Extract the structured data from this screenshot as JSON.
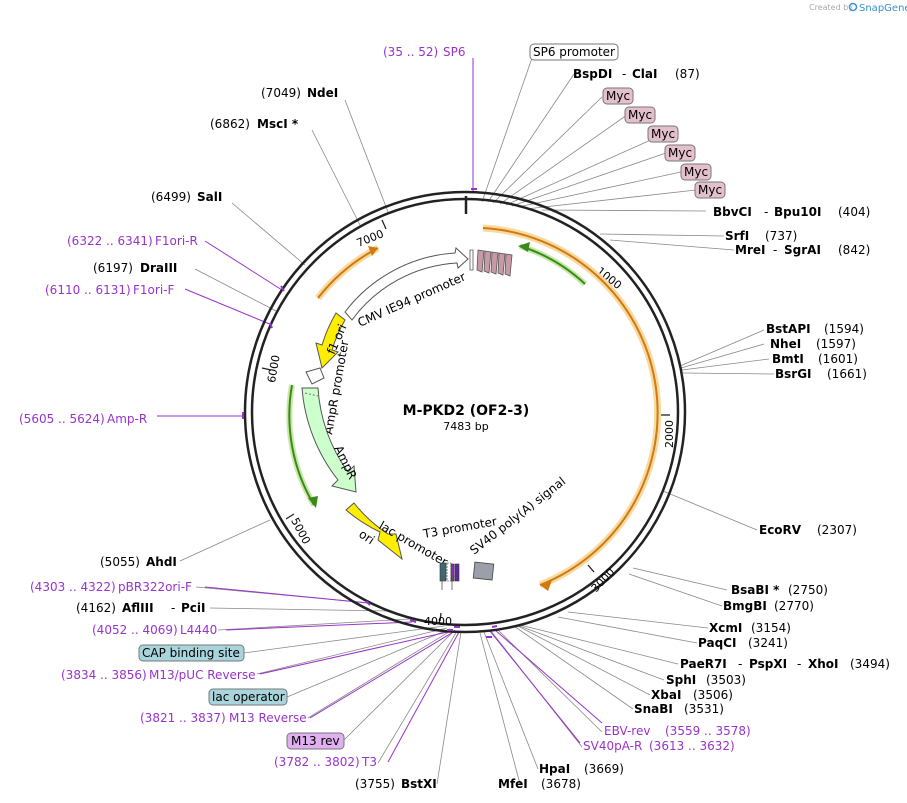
{
  "watermark": {
    "prefix": "Created by",
    "brand": "SnapGene"
  },
  "plasmid": {
    "name": "M-PKD2 (OF2-3)",
    "length_label": "7483 bp"
  },
  "ticks": [
    "1000",
    "2000",
    "3000",
    "4000",
    "5000",
    "6000",
    "7000"
  ],
  "features": {
    "sp6_promoter": "SP6 promoter",
    "myc": "Myc",
    "cap_binding_site": "CAP binding site",
    "lac_operator": "lac operator",
    "m13_rev": "M13 rev",
    "cmv": "CMV IE94 promoter",
    "f1_ori": "f1 ori",
    "ampr_promoter": "AmpR promoter",
    "ampr": "AmpR",
    "ori": "ori",
    "lac_promoter": "lac promoter",
    "t3_promoter": "T3 promoter",
    "sv40_polya": "SV40 poly(A) signal"
  },
  "sites": {
    "sp6": {
      "range": "(35 .. 52)",
      "name": "SP6"
    },
    "bspdi": {
      "name1": "BspDI",
      "sep": "-",
      "name2": "ClaI",
      "pos": "(87)"
    },
    "ndei": {
      "pos": "(7049)",
      "name": "NdeI"
    },
    "msci": {
      "pos": "(6862)",
      "name": "MscI *"
    },
    "sali": {
      "pos": "(6499)",
      "name": "SalI"
    },
    "f1ori_r": {
      "range": "(6322 .. 6341)",
      "name": "F1ori-R"
    },
    "draiii": {
      "pos": "(6197)",
      "name": "DraIII"
    },
    "f1ori_f": {
      "range": "(6110 .. 6131)",
      "name": "F1ori-F"
    },
    "amp_r": {
      "range": "(5605 .. 5624)",
      "name": "Amp-R"
    },
    "ahdi": {
      "pos": "(5055)",
      "name": "AhdI"
    },
    "pbr322": {
      "range": "(4303 .. 4322)",
      "name": "pBR322ori-F"
    },
    "afliii": {
      "pos": "(4162)",
      "name1": "AflIII",
      "sep": "-",
      "name2": "PciI"
    },
    "l4440": {
      "range": "(4052 .. 4069)",
      "name": "L4440"
    },
    "m13puc": {
      "range": "(3834 .. 3856)",
      "name": "M13/pUC Reverse"
    },
    "m13reverse": {
      "range": "(3821 .. 3837)",
      "name": "M13 Reverse"
    },
    "t3": {
      "range": "(3782 .. 3802)",
      "name": "T3"
    },
    "bstxi": {
      "pos": "(3755)",
      "name": "BstXI"
    },
    "mfei": {
      "name": "MfeI",
      "pos": "(3678)"
    },
    "hpai": {
      "name": "HpaI",
      "pos": "(3669)"
    },
    "sv40pa_r": {
      "name": "SV40pA-R",
      "range": "(3613 .. 3632)"
    },
    "ebv_rev": {
      "name": "EBV-rev",
      "range": "(3559 .. 3578)"
    },
    "snabi": {
      "name": "SnaBI",
      "pos": "(3531)"
    },
    "xbai": {
      "name": "XbaI",
      "pos": "(3506)"
    },
    "sphi": {
      "name": "SphI",
      "pos": "(3503)"
    },
    "paer7i": {
      "name1": "PaeR7I",
      "sep1": "-",
      "name2": "PspXI",
      "sep2": "-",
      "name3": "XhoI",
      "pos": "(3494)"
    },
    "paqci": {
      "name": "PaqCI",
      "pos": "(3241)"
    },
    "xcmi": {
      "name": "XcmI",
      "pos": "(3154)"
    },
    "bmgbi": {
      "name": "BmgBI",
      "pos": "(2770)"
    },
    "bsabi": {
      "name": "BsaBI *",
      "pos": "(2750)"
    },
    "ecorv": {
      "name": "EcoRV",
      "pos": "(2307)"
    },
    "bsrgi": {
      "name": "BsrGI",
      "pos": "(1661)"
    },
    "bmti": {
      "name": "BmtI",
      "pos": "(1601)"
    },
    "nhei": {
      "name": "NheI",
      "pos": "(1597)"
    },
    "bstapi": {
      "name": "BstAPI",
      "pos": "(1594)"
    },
    "mrei": {
      "name1": "MreI",
      "sep": "-",
      "name2": "SgrAI",
      "pos": "(842)"
    },
    "srfi": {
      "name": "SrfI",
      "pos": "(737)"
    },
    "bbvci": {
      "name1": "BbvCI",
      "sep": "-",
      "name2": "Bpu10I",
      "pos": "(404)"
    }
  },
  "colors": {
    "primer": "#9933cc",
    "backbone": "#222222",
    "orange_arc": "#f0b040",
    "green_arc": "#3a8a1a",
    "yellow": "#ffee00",
    "light_green": "#ccffcc",
    "myc_fill": "#e4c0cc",
    "cap_fill": "#a8d4dc",
    "m13_fill": "#e0b0f0"
  }
}
